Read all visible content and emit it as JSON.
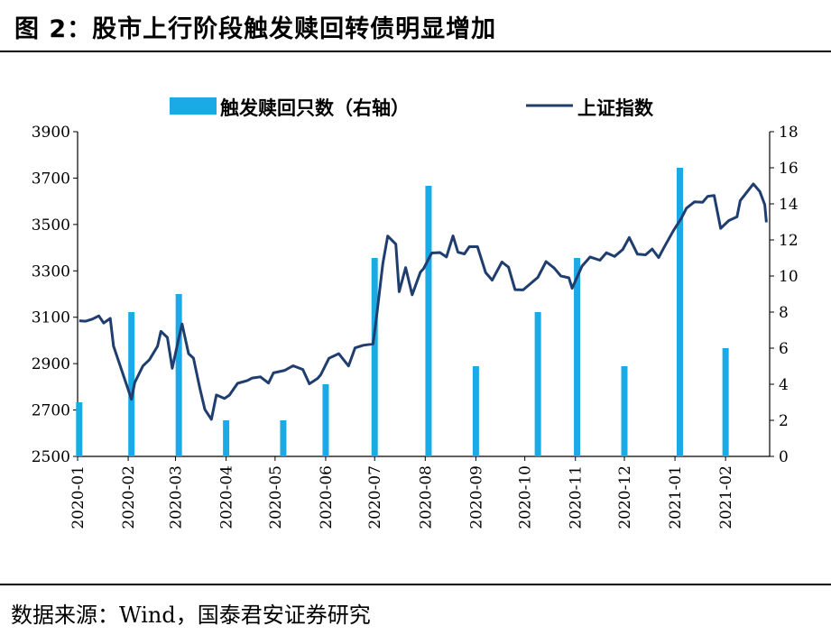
{
  "figure": {
    "title": "图 2：股市上行阶段触发赎回转债明显增加",
    "source": "数据来源：Wind，国泰君安证券研究"
  },
  "colors": {
    "bar": "#1aaae6",
    "line": "#1f3d6e",
    "axis": "#000000"
  },
  "chart_data": {
    "type": "bar+line",
    "legend": [
      "触发赎回只数（右轴）",
      "上证指数"
    ],
    "legend_placement": "top-center",
    "grid": false,
    "x_tick_labels": [
      "2020-01",
      "2020-02",
      "2020-03",
      "2020-04",
      "2020-05",
      "2020-06",
      "2020-07",
      "2020-08",
      "2020-09",
      "2020-10",
      "2020-11",
      "2020-12",
      "2021-01",
      "2021-02"
    ],
    "y_left": {
      "ticks": [
        2500,
        2700,
        2900,
        3100,
        3300,
        3500,
        3700,
        3900
      ],
      "lim": [
        2500,
        3900
      ]
    },
    "y_right": {
      "ticks": [
        0,
        2,
        4,
        6,
        8,
        10,
        12,
        14,
        16,
        18
      ],
      "lim": [
        0,
        18
      ]
    },
    "bars": {
      "name": "触发赎回只数（右轴）",
      "axis": "right",
      "x": [
        "2020-01-02",
        "2020-02-03",
        "2020-03-03",
        "2020-04-01",
        "2020-05-06",
        "2020-06-01",
        "2020-07-01",
        "2020-08-03",
        "2020-09-01",
        "2020-10-09",
        "2020-11-02",
        "2020-12-01",
        "2021-01-04",
        "2021-02-01"
      ],
      "values": [
        3,
        8,
        9,
        2,
        2,
        4,
        11,
        15,
        5,
        8,
        11,
        5,
        16,
        6
      ]
    },
    "line": {
      "name": "上证指数",
      "axis": "left",
      "points": [
        [
          "2020-01-02",
          3085
        ],
        [
          "2020-01-06",
          3083
        ],
        [
          "2020-01-10",
          3092
        ],
        [
          "2020-01-14",
          3106
        ],
        [
          "2020-01-17",
          3075
        ],
        [
          "2020-01-21",
          3095
        ],
        [
          "2020-01-23",
          2976
        ],
        [
          "2020-02-03",
          2746
        ],
        [
          "2020-02-05",
          2818
        ],
        [
          "2020-02-10",
          2890
        ],
        [
          "2020-02-14",
          2917
        ],
        [
          "2020-02-19",
          2975
        ],
        [
          "2020-02-21",
          3039
        ],
        [
          "2020-02-25",
          3013
        ],
        [
          "2020-02-28",
          2880
        ],
        [
          "2020-03-03",
          3011
        ],
        [
          "2020-03-05",
          3071
        ],
        [
          "2020-03-09",
          2943
        ],
        [
          "2020-03-12",
          2924
        ],
        [
          "2020-03-16",
          2790
        ],
        [
          "2020-03-19",
          2702
        ],
        [
          "2020-03-23",
          2660
        ],
        [
          "2020-03-26",
          2765
        ],
        [
          "2020-03-31",
          2750
        ],
        [
          "2020-04-03",
          2764
        ],
        [
          "2020-04-08",
          2815
        ],
        [
          "2020-04-14",
          2827
        ],
        [
          "2020-04-17",
          2838
        ],
        [
          "2020-04-22",
          2843
        ],
        [
          "2020-04-27",
          2816
        ],
        [
          "2020-04-30",
          2860
        ],
        [
          "2020-05-07",
          2871
        ],
        [
          "2020-05-12",
          2891
        ],
        [
          "2020-05-18",
          2875
        ],
        [
          "2020-05-22",
          2813
        ],
        [
          "2020-05-27",
          2836
        ],
        [
          "2020-05-29",
          2852
        ],
        [
          "2020-06-03",
          2923
        ],
        [
          "2020-06-09",
          2943
        ],
        [
          "2020-06-15",
          2890
        ],
        [
          "2020-06-19",
          2968
        ],
        [
          "2020-06-24",
          2979
        ],
        [
          "2020-06-30",
          2985
        ],
        [
          "2020-07-02",
          3091
        ],
        [
          "2020-07-06",
          3332
        ],
        [
          "2020-07-09",
          3450
        ],
        [
          "2020-07-14",
          3415
        ],
        [
          "2020-07-16",
          3210
        ],
        [
          "2020-07-20",
          3314
        ],
        [
          "2020-07-24",
          3197
        ],
        [
          "2020-07-29",
          3294
        ],
        [
          "2020-07-31",
          3310
        ],
        [
          "2020-08-05",
          3377
        ],
        [
          "2020-08-10",
          3379
        ],
        [
          "2020-08-14",
          3360
        ],
        [
          "2020-08-18",
          3451
        ],
        [
          "2020-08-21",
          3381
        ],
        [
          "2020-08-25",
          3373
        ],
        [
          "2020-08-28",
          3404
        ],
        [
          "2020-09-02",
          3404
        ],
        [
          "2020-09-07",
          3293
        ],
        [
          "2020-09-11",
          3260
        ],
        [
          "2020-09-17",
          3338
        ],
        [
          "2020-09-21",
          3316
        ],
        [
          "2020-09-25",
          3219
        ],
        [
          "2020-09-30",
          3218
        ],
        [
          "2020-10-09",
          3272
        ],
        [
          "2020-10-14",
          3340
        ],
        [
          "2020-10-19",
          3312
        ],
        [
          "2020-10-23",
          3278
        ],
        [
          "2020-10-28",
          3270
        ],
        [
          "2020-10-30",
          3225
        ],
        [
          "2020-11-05",
          3320
        ],
        [
          "2020-11-10",
          3360
        ],
        [
          "2020-11-16",
          3346
        ],
        [
          "2020-11-20",
          3378
        ],
        [
          "2020-11-25",
          3362
        ],
        [
          "2020-11-30",
          3392
        ],
        [
          "2020-12-04",
          3444
        ],
        [
          "2020-12-09",
          3372
        ],
        [
          "2020-12-14",
          3369
        ],
        [
          "2020-12-18",
          3394
        ],
        [
          "2020-12-22",
          3357
        ],
        [
          "2020-12-25",
          3397
        ],
        [
          "2020-12-31",
          3473
        ],
        [
          "2021-01-05",
          3528
        ],
        [
          "2021-01-08",
          3570
        ],
        [
          "2021-01-13",
          3598
        ],
        [
          "2021-01-18",
          3596
        ],
        [
          "2021-01-21",
          3621
        ],
        [
          "2021-01-25",
          3625
        ],
        [
          "2021-01-29",
          3483
        ],
        [
          "2021-02-03",
          3517
        ],
        [
          "2021-02-08",
          3533
        ],
        [
          "2021-02-10",
          3603
        ],
        [
          "2021-02-18",
          3675
        ],
        [
          "2021-02-22",
          3642
        ],
        [
          "2021-02-25",
          3585
        ],
        [
          "2021-02-26",
          3509
        ]
      ]
    }
  }
}
